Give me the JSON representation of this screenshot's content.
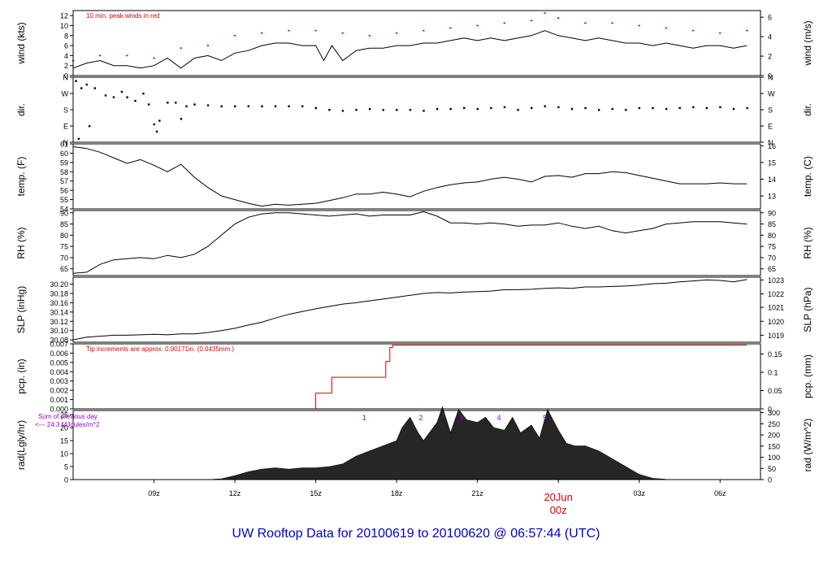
{
  "footer_title": "UW Rooftop Data for 20100619  to  20100620 @ 06:57:44  (UTC)",
  "colors": {
    "ink": "#000000",
    "red": "#dd0000",
    "purple": "#9900cc",
    "blue": "#0000cc",
    "rad_fill": "#262626"
  },
  "chart_data": [
    {
      "type": "line",
      "id": "wind",
      "ylabel": "wind (kts)",
      "ylabel_right": "wind (m/s)",
      "ylim": [
        0,
        13
      ],
      "yticks": [
        0,
        2,
        4,
        6,
        8,
        10,
        12
      ],
      "right_ticks": [
        {
          "label": "0",
          "v": 0
        },
        {
          "label": "2",
          "v": 3.888
        },
        {
          "label": "4",
          "v": 7.776
        },
        {
          "label": "6",
          "v": 11.664
        }
      ],
      "annotation": "10 min. peak winds in red",
      "series": [
        {
          "x": [
            6,
            6.5,
            7,
            7.5,
            8,
            8.5,
            9,
            9.5,
            10,
            10.5,
            11,
            11.5,
            12,
            12.5,
            13,
            13.5,
            14,
            14.5,
            15,
            15.3,
            15.6,
            16,
            16.5,
            17,
            17.5,
            18,
            18.5,
            19,
            19.5,
            20,
            20.5,
            21,
            21.5,
            22,
            22.5,
            23,
            23.5,
            24,
            24.5,
            25,
            25.5,
            26,
            26.5,
            27,
            27.5,
            28,
            28.5,
            29,
            29.5,
            30,
            30.5,
            31
          ],
          "values": [
            1.5,
            2.5,
            3,
            2,
            2,
            1.5,
            2,
            3.5,
            1.5,
            3.5,
            4,
            3,
            4.5,
            5,
            6,
            6.5,
            6.5,
            6,
            6,
            3,
            6,
            3,
            5,
            5.5,
            5.5,
            6,
            6,
            6.5,
            6.5,
            7,
            7.5,
            7,
            7.5,
            7,
            7.5,
            8,
            9,
            8,
            7.5,
            7,
            7.5,
            7,
            6.5,
            6.5,
            6,
            6.5,
            6,
            5.5,
            6,
            6,
            5.5,
            6
          ]
        },
        {
          "name_hidden": true,
          "x": [
            6,
            7,
            8,
            9,
            10,
            11,
            12,
            13,
            14,
            15,
            16,
            17,
            18,
            19,
            20,
            21,
            22,
            23,
            23.5,
            24,
            25,
            26,
            27,
            28,
            29,
            30,
            31
          ],
          "values": [
            3,
            4,
            4,
            3.5,
            5.5,
            6,
            8,
            8.5,
            9,
            9,
            8.5,
            8,
            8.5,
            9,
            9.5,
            10,
            10.5,
            11,
            12.5,
            11.5,
            10.5,
            10.5,
            10,
            9.5,
            9,
            8.5,
            9
          ]
        }
      ]
    },
    {
      "type": "scatter",
      "id": "dir",
      "ylabel": "dir.",
      "ylabel_right": "dir.",
      "ylim": [
        0,
        360
      ],
      "yticks": [
        {
          "label": "N",
          "v": 0
        },
        {
          "label": "E",
          "v": 90
        },
        {
          "label": "S",
          "v": 180
        },
        {
          "label": "W",
          "v": 270
        },
        {
          "label": "N",
          "v": 360
        }
      ],
      "series": [
        {
          "x": [
            6.1,
            6.2,
            6.3,
            6.5,
            6.6,
            6.8,
            7.2,
            7.5,
            7.8,
            8.0,
            8.3,
            8.6,
            8.8,
            9.0,
            9.1,
            9.2,
            9.5,
            9.8,
            10.0,
            10.2,
            10.5,
            11,
            11.5,
            12,
            12.5,
            13,
            13.5,
            14,
            14.5,
            15,
            15.5,
            16,
            16.5,
            17,
            17.5,
            18,
            18.5,
            19,
            19.5,
            20,
            20.5,
            21,
            21.5,
            22,
            22.5,
            23,
            23.5,
            24,
            24.5,
            25,
            25.5,
            26,
            26.5,
            27,
            27.5,
            28,
            28.5,
            29,
            29.5,
            30,
            30.5,
            31
          ],
          "values": [
            340,
            20,
            300,
            320,
            90,
            300,
            260,
            250,
            280,
            250,
            230,
            270,
            210,
            100,
            60,
            120,
            220,
            220,
            130,
            200,
            210,
            205,
            200,
            200,
            200,
            200,
            200,
            200,
            200,
            190,
            180,
            175,
            180,
            185,
            180,
            180,
            180,
            175,
            185,
            185,
            190,
            185,
            190,
            195,
            180,
            190,
            200,
            195,
            185,
            190,
            180,
            185,
            180,
            190,
            190,
            185,
            190,
            195,
            190,
            195,
            185,
            190
          ]
        }
      ]
    },
    {
      "type": "line",
      "id": "temp",
      "ylabel": "temp. (F)",
      "ylabel_right": "temp. (C)",
      "ylim": [
        54,
        61
      ],
      "yticks": [
        54,
        55,
        56,
        57,
        58,
        59,
        60,
        61
      ],
      "right_ticks": [
        {
          "label": "13",
          "v": 55.4
        },
        {
          "label": "14",
          "v": 57.2
        },
        {
          "label": "15",
          "v": 59.0
        },
        {
          "label": "16",
          "v": 60.8
        }
      ],
      "series": [
        {
          "x": [
            6,
            6.5,
            7,
            7.5,
            8,
            8.5,
            9,
            9.5,
            10,
            10.5,
            11,
            11.5,
            12,
            12.5,
            13,
            13.5,
            14,
            14.5,
            15,
            15.5,
            16,
            16.5,
            17,
            17.5,
            18,
            18.5,
            19,
            19.5,
            20,
            20.5,
            21,
            21.5,
            22,
            22.5,
            23,
            23.5,
            24,
            24.5,
            25,
            25.5,
            26,
            26.5,
            27,
            27.5,
            28,
            28.5,
            29,
            29.5,
            30,
            30.5,
            31
          ],
          "values": [
            60.7,
            60.5,
            60.1,
            59.5,
            58.9,
            59.3,
            58.7,
            58.0,
            58.8,
            57.4,
            56.3,
            55.4,
            55.0,
            54.6,
            54.3,
            54.5,
            54.4,
            54.5,
            54.6,
            54.9,
            55.2,
            55.6,
            55.6,
            55.8,
            55.6,
            55.3,
            55.9,
            56.3,
            56.6,
            56.8,
            56.9,
            57.2,
            57.4,
            57.2,
            56.9,
            57.5,
            57.6,
            57.4,
            57.8,
            57.8,
            58.0,
            57.9,
            57.6,
            57.3,
            57.0,
            56.7,
            56.7,
            56.7,
            56.8,
            56.7,
            56.7
          ]
        }
      ]
    },
    {
      "type": "line",
      "id": "rh",
      "ylabel": "RH (%)",
      "ylabel_right": "RH (%)",
      "ylim": [
        62,
        91
      ],
      "yticks": [
        65,
        70,
        75,
        80,
        85,
        90
      ],
      "series": [
        {
          "x": [
            6,
            6.5,
            7,
            7.5,
            8,
            8.5,
            9,
            9.5,
            10,
            10.5,
            11,
            11.5,
            12,
            12.5,
            13,
            13.5,
            14,
            14.5,
            15,
            15.5,
            16,
            16.5,
            17,
            17.5,
            18,
            18.5,
            19,
            19.5,
            20,
            20.5,
            21,
            21.5,
            22,
            22.5,
            23,
            23.5,
            24,
            24.5,
            25,
            25.5,
            26,
            26.5,
            27,
            27.5,
            28,
            28.5,
            29,
            29.5,
            30,
            30.5,
            31
          ],
          "values": [
            63,
            63.5,
            67,
            69,
            69.5,
            70,
            69.5,
            71,
            70,
            71.5,
            75,
            80,
            85,
            88,
            89.5,
            90,
            90,
            89.5,
            89,
            88.5,
            89,
            89.5,
            88.5,
            89,
            89,
            89,
            90.5,
            88.5,
            85.5,
            85.5,
            85,
            85.5,
            85,
            84,
            84.5,
            84.5,
            85.5,
            84,
            83,
            84,
            82,
            81,
            82,
            83,
            85,
            85.5,
            86,
            86,
            86,
            85.5,
            85
          ]
        }
      ]
    },
    {
      "type": "line",
      "id": "slp",
      "ylabel": "SLP (inHg)",
      "ylabel_right": "SLP (hPa)",
      "ylim": [
        30.075,
        30.215
      ],
      "yticks": [
        30.08,
        30.1,
        30.12,
        30.14,
        30.16,
        30.18,
        30.2
      ],
      "ytick_labels": [
        "30.08",
        "30.10",
        "30.12",
        "30.14",
        "30.16",
        "30.18",
        "30.20"
      ],
      "right_ticks": [
        {
          "label": "1019",
          "v": 30.09
        },
        {
          "label": "1020",
          "v": 30.12
        },
        {
          "label": "1021",
          "v": 30.15
        },
        {
          "label": "1022",
          "v": 30.179
        },
        {
          "label": "1023",
          "v": 30.209
        }
      ],
      "series": [
        {
          "x": [
            6,
            6.5,
            7,
            7.5,
            8,
            8.5,
            9,
            9.5,
            10,
            10.5,
            11,
            11.5,
            12,
            12.5,
            13,
            13.5,
            14,
            14.5,
            15,
            15.5,
            16,
            16.5,
            17,
            17.5,
            18,
            18.5,
            19,
            19.5,
            20,
            20.5,
            21,
            21.5,
            22,
            22.5,
            23,
            23.5,
            24,
            24.5,
            25,
            25.5,
            26,
            26.5,
            27,
            27.5,
            28,
            28.5,
            29,
            29.5,
            30,
            30.5,
            31
          ],
          "values": [
            30.08,
            30.086,
            30.088,
            30.09,
            30.09,
            30.091,
            30.092,
            30.091,
            30.093,
            30.093,
            30.096,
            30.1,
            30.105,
            30.112,
            30.118,
            30.127,
            30.135,
            30.141,
            30.147,
            30.152,
            30.157,
            30.16,
            30.164,
            30.168,
            30.172,
            30.176,
            30.18,
            30.182,
            30.181,
            30.183,
            30.184,
            30.185,
            30.188,
            30.188,
            30.189,
            30.191,
            30.192,
            30.191,
            30.194,
            30.194,
            30.195,
            30.196,
            30.198,
            30.201,
            30.202,
            30.205,
            30.207,
            30.209,
            30.208,
            30.205,
            30.21
          ]
        }
      ]
    },
    {
      "type": "line",
      "id": "pcp",
      "ylabel": "pcp. (in)",
      "ylabel_right": "pcp. (mm)",
      "ylim": [
        0,
        0.007
      ],
      "yticks": [
        0,
        0.001,
        0.002,
        0.003,
        0.004,
        0.005,
        0.006,
        0.007
      ],
      "ytick_labels": [
        "0.000",
        "0.001",
        "0.002",
        "0.003",
        "0.004",
        "0.005",
        "0.006",
        "0.007"
      ],
      "right_ticks": [
        {
          "label": "0",
          "v": 0
        },
        {
          "label": "0.05",
          "v": 0.001969
        },
        {
          "label": "0.1",
          "v": 0.003937
        },
        {
          "label": "0.15",
          "v": 0.005906
        }
      ],
      "annotation": "Tip increments are approx. 0.00171in. (0.0435mm.)",
      "series": [
        {
          "x": [
            6,
            15.0,
            15.0,
            15.6,
            15.6,
            17.6,
            17.6,
            17.75,
            17.75,
            17.85,
            17.85,
            31
          ],
          "values": [
            0,
            0,
            0.0017,
            0.0017,
            0.0034,
            0.0034,
            0.0051,
            0.0051,
            0.0066,
            0.0066,
            0.00686,
            0.00686
          ]
        }
      ]
    },
    {
      "type": "area",
      "id": "rad",
      "ylabel": "rad(Lgly/hr)",
      "ylabel_right": "rad (W/m^2)",
      "ylim": [
        0,
        26.6
      ],
      "yticks": [
        0,
        5,
        10,
        15,
        20,
        25
      ],
      "right_ticks": [
        {
          "label": "0",
          "v": 0
        },
        {
          "label": "50",
          "v": 4.3
        },
        {
          "label": "100",
          "v": 8.6
        },
        {
          "label": "150",
          "v": 12.9
        },
        {
          "label": "200",
          "v": 17.2
        },
        {
          "label": "250",
          "v": 21.5
        },
        {
          "label": "300",
          "v": 25.8
        }
      ],
      "annotation_lines": [
        "Sum of previous day",
        "<--- 24.3 MJoules/m^2"
      ],
      "hour_markers": [
        {
          "label": "1",
          "x": 16.8
        },
        {
          "label": "2",
          "x": 18.9
        },
        {
          "label": "3",
          "x": 20.4
        },
        {
          "label": "4",
          "x": 21.8
        },
        {
          "label": "5",
          "x": 23.5
        }
      ],
      "series": [
        {
          "x": [
            6,
            11,
            11.5,
            12,
            12.5,
            13,
            13.5,
            14,
            14.5,
            15,
            15.5,
            16,
            16.5,
            17,
            17.5,
            18,
            18.2,
            18.5,
            18.8,
            19,
            19.5,
            19.7,
            20,
            20.3,
            20.6,
            21,
            21.3,
            21.6,
            22,
            22.3,
            22.6,
            23,
            23.3,
            23.6,
            24,
            24.3,
            24.6,
            25,
            25.5,
            26,
            26.5,
            27,
            27.5,
            28,
            28.5,
            31
          ],
          "values": [
            0,
            0,
            0.3,
            1.5,
            3,
            4,
            4.5,
            4,
            4.5,
            4.5,
            5,
            6,
            9,
            11,
            13,
            15,
            20,
            24,
            18,
            15,
            22,
            28,
            18,
            27,
            23,
            22,
            24,
            20,
            19,
            24,
            18,
            21,
            16,
            27,
            19,
            14,
            13,
            13,
            11,
            8,
            5,
            2,
            0.5,
            0.1,
            0,
            0
          ]
        }
      ]
    }
  ],
  "x_axis": {
    "xlim": [
      6.0,
      31.5
    ],
    "ticks": [
      {
        "label": "09z",
        "x": 9
      },
      {
        "label": "12z",
        "x": 12
      },
      {
        "label": "15z",
        "x": 15
      },
      {
        "label": "18z",
        "x": 18
      },
      {
        "label": "21z",
        "x": 21
      },
      {
        "label": "03z",
        "x": 27
      },
      {
        "label": "06z",
        "x": 30
      }
    ],
    "midnight": {
      "x": 24,
      "date_label": "20Jun",
      "time_label": "00z"
    }
  }
}
